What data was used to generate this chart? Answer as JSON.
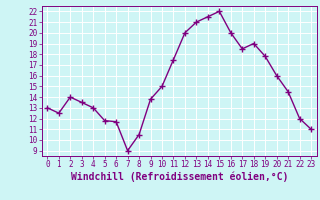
{
  "x": [
    0,
    1,
    2,
    3,
    4,
    5,
    6,
    7,
    8,
    9,
    10,
    11,
    12,
    13,
    14,
    15,
    16,
    17,
    18,
    19,
    20,
    21,
    22,
    23
  ],
  "y": [
    13.0,
    12.5,
    14.0,
    13.5,
    13.0,
    11.8,
    11.7,
    9.0,
    10.5,
    13.8,
    15.0,
    17.5,
    20.0,
    21.0,
    21.5,
    22.0,
    20.0,
    18.5,
    19.0,
    17.8,
    16.0,
    14.5,
    12.0,
    11.0
  ],
  "line_color": "#800080",
  "marker": "+",
  "markersize": 4,
  "linewidth": 1.0,
  "xlabel": "Windchill (Refroidissement éolien,°C)",
  "xlabel_fontsize": 7,
  "ylabel_ticks": [
    9,
    10,
    11,
    12,
    13,
    14,
    15,
    16,
    17,
    18,
    19,
    20,
    21,
    22
  ],
  "xlim": [
    -0.5,
    23.5
  ],
  "ylim": [
    8.5,
    22.5
  ],
  "background_color": "#cef5f5",
  "grid_color": "#ffffff",
  "tick_color": "#800080",
  "tick_fontsize": 5.5,
  "xtick_labels": [
    "0",
    "1",
    "2",
    "3",
    "4",
    "5",
    "6",
    "7",
    "8",
    "9",
    "10",
    "11",
    "12",
    "13",
    "14",
    "15",
    "16",
    "17",
    "18",
    "19",
    "20",
    "21",
    "22",
    "23"
  ]
}
